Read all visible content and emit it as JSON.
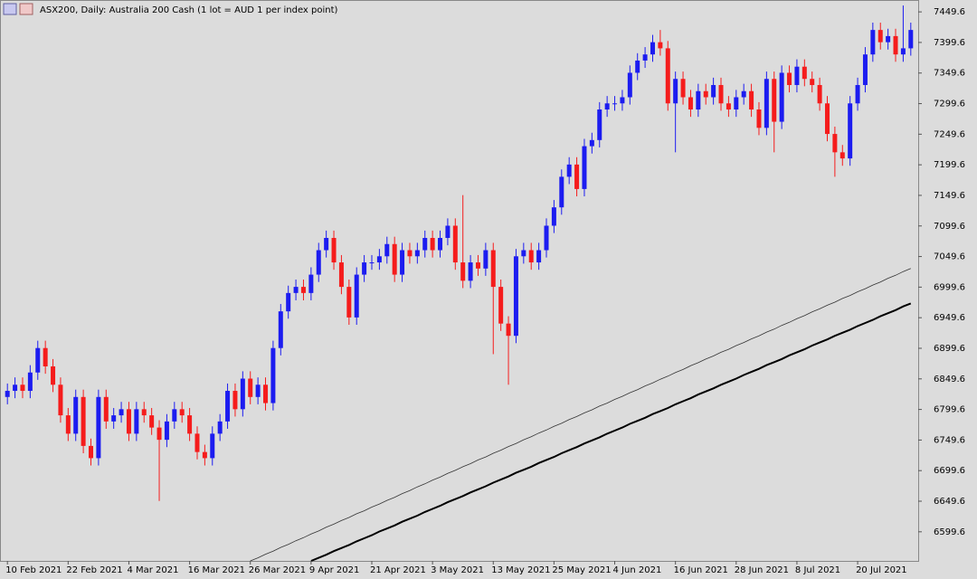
{
  "chart_data": {
    "type": "candlestick",
    "title": "ASX200, Daily:  Australia 200 Cash (1 lot = AUD 1 per index point)",
    "categories": [
      "10 Feb 2021",
      null,
      null,
      null,
      null,
      null,
      null,
      null,
      "22 Feb 2021",
      null,
      null,
      null,
      null,
      null,
      null,
      null,
      "4 Mar 2021",
      null,
      null,
      null,
      null,
      null,
      null,
      null,
      "16 Mar 2021",
      null,
      null,
      null,
      null,
      null,
      null,
      null,
      "26 Mar 2021",
      null,
      null,
      null,
      null,
      null,
      null,
      null,
      "9 Apr 2021",
      null,
      null,
      null,
      null,
      null,
      null,
      null,
      "21 Apr 2021",
      null,
      null,
      null,
      null,
      null,
      null,
      null,
      "3 May 2021",
      null,
      null,
      null,
      null,
      null,
      null,
      null,
      "13 May 2021",
      null,
      null,
      null,
      null,
      null,
      null,
      null,
      "25 May 2021",
      null,
      null,
      null,
      null,
      null,
      null,
      null,
      "4 Jun 2021",
      null,
      null,
      null,
      null,
      null,
      null,
      null,
      "16 Jun 2021",
      null,
      null,
      null,
      null,
      null,
      null,
      null,
      "28 Jun 2021",
      null,
      null,
      null,
      null,
      null,
      null,
      null,
      "8 Jul 2021",
      null,
      null,
      null,
      null,
      null,
      null,
      null,
      "20 Jul 2021",
      null,
      null,
      null,
      null,
      null,
      null,
      null
    ],
    "open": [
      6820,
      6830,
      6840,
      6830,
      6860,
      6900,
      6870,
      6840,
      6790,
      6760,
      6820,
      6740,
      6720,
      6820,
      6780,
      6790,
      6800,
      6760,
      6800,
      6790,
      6770,
      6750,
      6780,
      6800,
      6790,
      6760,
      6730,
      6720,
      6760,
      6780,
      6830,
      6800,
      6850,
      6820,
      6840,
      6810,
      6900,
      6960,
      6990,
      7000,
      6990,
      7020,
      7060,
      7080,
      7040,
      7000,
      6950,
      7020,
      7040,
      7040,
      7050,
      7070,
      7020,
      7060,
      7050,
      7060,
      7080,
      7060,
      7080,
      7100,
      7040,
      7010,
      7040,
      7030,
      7060,
      7000,
      6940,
      6920,
      7050,
      7060,
      7040,
      7060,
      7100,
      7130,
      7180,
      7200,
      7160,
      7230,
      7240,
      7290,
      7300,
      7300,
      7310,
      7350,
      7370,
      7380,
      7400,
      7390,
      7300,
      7340,
      7310,
      7290,
      7320,
      7310,
      7330,
      7300,
      7290,
      7310,
      7320,
      7290,
      7260,
      7340,
      7270,
      7350,
      7330,
      7360,
      7340,
      7330,
      7300,
      7250,
      7220,
      7210,
      7300,
      7330,
      7380,
      7420,
      7400,
      7410,
      7380,
      7390
    ],
    "high": [
      6842,
      6852,
      6852,
      6872,
      6912,
      6912,
      6882,
      6852,
      6802,
      6832,
      6832,
      6752,
      6832,
      6832,
      6802,
      6812,
      6812,
      6812,
      6812,
      6802,
      6782,
      6792,
      6812,
      6812,
      6802,
      6772,
      6742,
      6772,
      6792,
      6842,
      6842,
      6862,
      6862,
      6852,
      6852,
      6912,
      6972,
      7002,
      7012,
      7012,
      7032,
      7072,
      7092,
      7092,
      7052,
      7012,
      7032,
      7052,
      7052,
      7062,
      7082,
      7082,
      7072,
      7072,
      7072,
      7092,
      7092,
      7092,
      7112,
      7112,
      7150,
      7052,
      7052,
      7072,
      7072,
      7012,
      6952,
      7062,
      7072,
      7072,
      7072,
      7112,
      7142,
      7192,
      7212,
      7212,
      7242,
      7252,
      7302,
      7312,
      7312,
      7322,
      7362,
      7382,
      7392,
      7412,
      7420,
      7402,
      7352,
      7352,
      7322,
      7332,
      7332,
      7342,
      7342,
      7312,
      7322,
      7332,
      7332,
      7302,
      7352,
      7352,
      7362,
      7362,
      7372,
      7372,
      7352,
      7342,
      7312,
      7262,
      7232,
      7312,
      7342,
      7392,
      7432,
      7432,
      7422,
      7422,
      7460,
      7432
    ],
    "low": [
      6808,
      6818,
      6818,
      6818,
      6848,
      6858,
      6828,
      6778,
      6748,
      6748,
      6728,
      6708,
      6708,
      6768,
      6768,
      6778,
      6748,
      6748,
      6778,
      6758,
      6650,
      6738,
      6768,
      6778,
      6748,
      6718,
      6708,
      6708,
      6748,
      6768,
      6788,
      6788,
      6808,
      6808,
      6798,
      6798,
      6888,
      6948,
      6978,
      6978,
      6978,
      7008,
      7048,
      7028,
      6988,
      6938,
      6938,
      7008,
      7028,
      7028,
      7038,
      7008,
      7008,
      7038,
      7038,
      7048,
      7048,
      7048,
      7068,
      7028,
      6998,
      6998,
      7018,
      7018,
      6890,
      6928,
      6840,
      6908,
      7038,
      7028,
      7028,
      7048,
      7088,
      7118,
      7168,
      7148,
      7148,
      7218,
      7228,
      7278,
      7288,
      7288,
      7298,
      7338,
      7358,
      7368,
      7378,
      7288,
      7220,
      7298,
      7278,
      7278,
      7298,
      7298,
      7288,
      7278,
      7278,
      7298,
      7278,
      7248,
      7248,
      7220,
      7258,
      7318,
      7318,
      7328,
      7318,
      7288,
      7238,
      7180,
      7198,
      7198,
      7288,
      7318,
      7368,
      7388,
      7388,
      7368,
      7368,
      7378
    ],
    "close": [
      6830,
      6840,
      6830,
      6860,
      6900,
      6870,
      6840,
      6790,
      6760,
      6820,
      6740,
      6720,
      6820,
      6780,
      6790,
      6800,
      6760,
      6800,
      6790,
      6770,
      6750,
      6780,
      6800,
      6790,
      6760,
      6730,
      6720,
      6760,
      6780,
      6830,
      6800,
      6850,
      6820,
      6840,
      6810,
      6900,
      6960,
      6990,
      7000,
      6990,
      7020,
      7060,
      7080,
      7040,
      7000,
      6950,
      7020,
      7040,
      7040,
      7050,
      7070,
      7020,
      7060,
      7050,
      7060,
      7080,
      7060,
      7080,
      7100,
      7040,
      7010,
      7040,
      7030,
      7060,
      7000,
      6940,
      6920,
      7050,
      7060,
      7040,
      7060,
      7100,
      7130,
      7180,
      7200,
      7160,
      7230,
      7240,
      7290,
      7300,
      7300,
      7310,
      7350,
      7370,
      7380,
      7400,
      7390,
      7300,
      7340,
      7310,
      7290,
      7320,
      7310,
      7330,
      7300,
      7290,
      7310,
      7320,
      7290,
      7260,
      7340,
      7270,
      7350,
      7330,
      7360,
      7340,
      7330,
      7300,
      7250,
      7220,
      7210,
      7300,
      7330,
      7380,
      7420,
      7400,
      7410,
      7380,
      7390,
      7420
    ],
    "up_color": "#1c1cf0",
    "down_color": "#f51c1c",
    "lines": [
      {
        "color": "#333333",
        "width": 0.8,
        "values": [
          null,
          null,
          null,
          null,
          null,
          null,
          null,
          null,
          null,
          null,
          null,
          null,
          null,
          null,
          null,
          null,
          null,
          null,
          null,
          null,
          null,
          null,
          null,
          null,
          null,
          null,
          null,
          null,
          null,
          null,
          null,
          null,
          6552,
          6557,
          6563,
          6568,
          6574,
          6579,
          6585,
          6590,
          6596,
          6601,
          6607,
          6612,
          6618,
          6623,
          6629,
          6634,
          6640,
          6645,
          6651,
          6656,
          6662,
          6667,
          6673,
          6678,
          6684,
          6689,
          6695,
          6700,
          6706,
          6711,
          6717,
          6722,
          6728,
          6733,
          6739,
          6744,
          6750,
          6755,
          6761,
          6766,
          6772,
          6777,
          6783,
          6788,
          6794,
          6799,
          6805,
          6810,
          6816,
          6821,
          6827,
          6832,
          6838,
          6843,
          6849,
          6854,
          6860,
          6865,
          6871,
          6876,
          6882,
          6887,
          6893,
          6898,
          6904,
          6909,
          6915,
          6920,
          6926,
          6931,
          6937,
          6942,
          6948,
          6953,
          6959,
          6964,
          6970,
          6975,
          6981,
          6986,
          6992,
          6997,
          7003,
          7008,
          7014,
          7019,
          7025,
          7030
        ]
      },
      {
        "color": "#000000",
        "width": 2,
        "values": [
          null,
          null,
          null,
          null,
          null,
          null,
          null,
          null,
          null,
          null,
          null,
          null,
          null,
          null,
          null,
          null,
          null,
          null,
          null,
          null,
          null,
          null,
          null,
          null,
          null,
          null,
          null,
          null,
          null,
          null,
          null,
          null,
          null,
          null,
          null,
          null,
          null,
          null,
          null,
          null,
          6552,
          6557,
          6562,
          6568,
          6573,
          6578,
          6584,
          6589,
          6594,
          6600,
          6605,
          6610,
          6616,
          6621,
          6626,
          6632,
          6637,
          6642,
          6648,
          6653,
          6658,
          6664,
          6669,
          6674,
          6680,
          6685,
          6690,
          6696,
          6701,
          6706,
          6712,
          6717,
          6722,
          6728,
          6733,
          6738,
          6744,
          6749,
          6754,
          6760,
          6765,
          6770,
          6776,
          6781,
          6786,
          6792,
          6797,
          6802,
          6808,
          6813,
          6818,
          6824,
          6829,
          6834,
          6840,
          6845,
          6850,
          6856,
          6861,
          6866,
          6872,
          6877,
          6882,
          6888,
          6893,
          6898,
          6904,
          6909,
          6914,
          6920,
          6925,
          6930,
          6936,
          6941,
          6946,
          6952,
          6957,
          6962,
          6968,
          6973
        ]
      }
    ],
    "ylim": [
      6552,
      7469
    ],
    "yticks": [
      7449.6,
      7399.6,
      7349.6,
      7299.6,
      7249.6,
      7199.6,
      7149.6,
      7099.6,
      7049.6,
      6999.6,
      6949.6,
      6899.6,
      6849.6,
      6799.6,
      6749.6,
      6699.6,
      6649.6,
      6599.6
    ]
  }
}
